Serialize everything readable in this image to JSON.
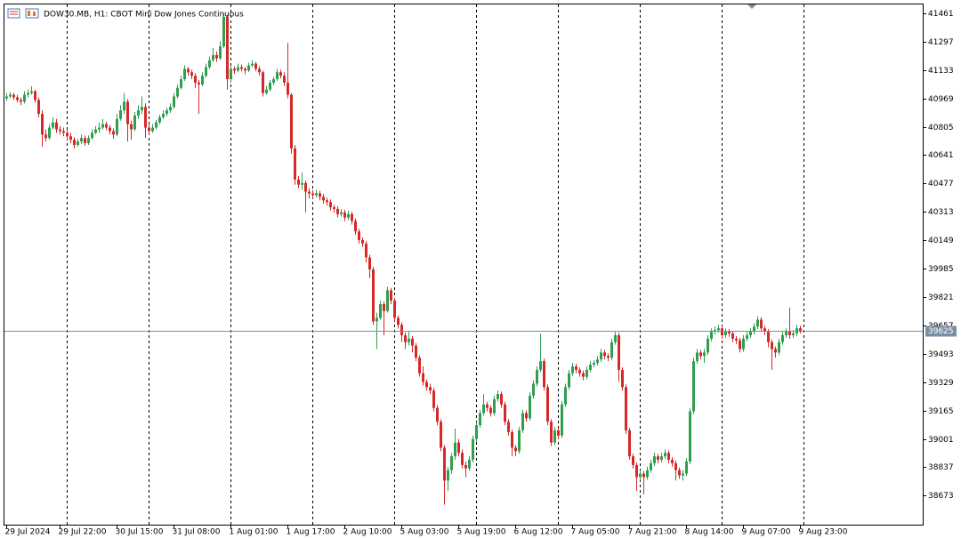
{
  "chart_data": {
    "type": "candlestick",
    "title": "DOW30.MB, H1:  CBOT Mini Dow Jones Continuous",
    "up_color": "#2e9e4f",
    "down_color": "#d62828",
    "ylim": [
      38505,
      41512
    ],
    "yticks": [
      41461,
      41297,
      41133,
      40969,
      40805,
      40641,
      40477,
      40313,
      40149,
      39985,
      39821,
      39657,
      39493,
      39329,
      39165,
      39001,
      38837,
      38673
    ],
    "xticks": [
      {
        "value": 0,
        "label": "29 Jul 2024"
      },
      {
        "value": 15,
        "label": "29 Jul 22:00"
      },
      {
        "value": 31,
        "label": "30 Jul 15:00"
      },
      {
        "value": 47,
        "label": "31 Jul 08:00"
      },
      {
        "value": 63,
        "label": "1 Aug 01:00"
      },
      {
        "value": 79,
        "label": "1 Aug 17:00"
      },
      {
        "value": 95,
        "label": "2 Aug 10:00"
      },
      {
        "value": 111,
        "label": "5 Aug 03:00"
      },
      {
        "value": 127,
        "label": "5 Aug 19:00"
      },
      {
        "value": 143,
        "label": "6 Aug 12:00"
      },
      {
        "value": 159,
        "label": "7 Aug 05:00"
      },
      {
        "value": 175,
        "label": "7 Aug 21:00"
      },
      {
        "value": 191,
        "label": "8 Aug 14:00"
      },
      {
        "value": 207,
        "label": "9 Aug 07:00"
      },
      {
        "value": 223,
        "label": "9 Aug 23:00"
      }
    ],
    "separators": [
      17,
      40,
      63,
      86,
      109,
      132,
      155,
      178,
      201,
      224
    ],
    "last_price": 39625,
    "candles": [
      [
        40970,
        41000,
        40955,
        40980
      ],
      [
        40980,
        41005,
        40970,
        40990
      ],
      [
        40990,
        41000,
        40960,
        40975
      ],
      [
        40975,
        40990,
        40945,
        40960
      ],
      [
        40960,
        40975,
        40930,
        40950
      ],
      [
        40950,
        41010,
        40940,
        40990
      ],
      [
        40990,
        41020,
        40975,
        41000
      ],
      [
        41000,
        41040,
        40990,
        41010
      ],
      [
        41010,
        41020,
        40945,
        40960
      ],
      [
        40960,
        40975,
        40860,
        40880
      ],
      [
        40880,
        40900,
        40690,
        40760
      ],
      [
        40760,
        40790,
        40720,
        40740
      ],
      [
        40740,
        40820,
        40730,
        40800
      ],
      [
        40800,
        40860,
        40790,
        40830
      ],
      [
        40830,
        40850,
        40770,
        40790
      ],
      [
        40790,
        40810,
        40760,
        40780
      ],
      [
        40780,
        40800,
        40750,
        40770
      ],
      [
        40770,
        40790,
        40730,
        40750
      ],
      [
        40750,
        40770,
        40710,
        40730
      ],
      [
        40730,
        40745,
        40680,
        40700
      ],
      [
        40700,
        40735,
        40690,
        40720
      ],
      [
        40720,
        40760,
        40705,
        40740
      ],
      [
        40740,
        40755,
        40695,
        40710
      ],
      [
        40710,
        40755,
        40700,
        40740
      ],
      [
        40740,
        40790,
        40730,
        40770
      ],
      [
        40770,
        40810,
        40760,
        40790
      ],
      [
        40790,
        40830,
        40770,
        40800
      ],
      [
        40800,
        40850,
        40790,
        40820
      ],
      [
        40820,
        40835,
        40785,
        40800
      ],
      [
        40800,
        40815,
        40760,
        40780
      ],
      [
        40780,
        40795,
        40735,
        40760
      ],
      [
        40760,
        40880,
        40750,
        40850
      ],
      [
        40850,
        40930,
        40840,
        40900
      ],
      [
        40900,
        41000,
        40880,
        40950
      ],
      [
        40950,
        40965,
        40720,
        40820
      ],
      [
        40820,
        40840,
        40730,
        40790
      ],
      [
        40790,
        40890,
        40780,
        40870
      ],
      [
        40870,
        40930,
        40850,
        40900
      ],
      [
        40900,
        40980,
        40880,
        40920
      ],
      [
        40920,
        40940,
        40740,
        40800
      ],
      [
        40800,
        40820,
        40760,
        40780
      ],
      [
        40780,
        40820,
        40770,
        40800
      ],
      [
        40800,
        40845,
        40790,
        40830
      ],
      [
        40830,
        40875,
        40820,
        40860
      ],
      [
        40860,
        40900,
        40850,
        40880
      ],
      [
        40880,
        40915,
        40865,
        40900
      ],
      [
        40900,
        40940,
        40885,
        40920
      ],
      [
        40920,
        41000,
        40910,
        40980
      ],
      [
        40980,
        41050,
        40970,
        41030
      ],
      [
        41030,
        41100,
        41020,
        41080
      ],
      [
        41080,
        41160,
        41070,
        41140
      ],
      [
        41140,
        41150,
        41100,
        41120
      ],
      [
        41120,
        41135,
        41080,
        41100
      ],
      [
        41100,
        41115,
        41030,
        41060
      ],
      [
        41060,
        41075,
        40880,
        41050
      ],
      [
        41050,
        41120,
        41040,
        41100
      ],
      [
        41100,
        41170,
        41090,
        41150
      ],
      [
        41150,
        41210,
        41140,
        41190
      ],
      [
        41190,
        41260,
        41180,
        41220
      ],
      [
        41220,
        41240,
        41180,
        41200
      ],
      [
        41200,
        41300,
        41190,
        41270
      ],
      [
        41270,
        41460,
        41260,
        41440
      ],
      [
        41440,
        41450,
        41020,
        41080
      ],
      [
        41080,
        41160,
        41060,
        41140
      ],
      [
        41140,
        41155,
        41110,
        41130
      ],
      [
        41130,
        41170,
        41120,
        41150
      ],
      [
        41150,
        41165,
        41125,
        41140
      ],
      [
        41140,
        41150,
        41110,
        41130
      ],
      [
        41130,
        41175,
        41120,
        41160
      ],
      [
        41160,
        41190,
        41150,
        41170
      ],
      [
        41170,
        41180,
        41125,
        41140
      ],
      [
        41140,
        41155,
        41100,
        41120
      ],
      [
        41120,
        41130,
        40980,
        41000
      ],
      [
        41000,
        41040,
        40990,
        41020
      ],
      [
        41020,
        41075,
        41010,
        41060
      ],
      [
        41060,
        41095,
        41045,
        41080
      ],
      [
        41080,
        41140,
        41070,
        41120
      ],
      [
        41120,
        41135,
        41085,
        41100
      ],
      [
        41100,
        41120,
        41040,
        41060
      ],
      [
        41060,
        41290,
        40970,
        40990
      ],
      [
        40990,
        41000,
        40650,
        40680
      ],
      [
        40680,
        40700,
        40470,
        40500
      ],
      [
        40500,
        40520,
        40450,
        40470
      ],
      [
        40470,
        40540,
        40440,
        40480
      ],
      [
        40480,
        40495,
        40310,
        40430
      ],
      [
        40430,
        40450,
        40390,
        40420
      ],
      [
        40420,
        40440,
        40390,
        40410
      ],
      [
        40410,
        40440,
        40395,
        40420
      ],
      [
        40420,
        40435,
        40380,
        40400
      ],
      [
        40400,
        40415,
        40360,
        40380
      ],
      [
        40380,
        40395,
        40350,
        40370
      ],
      [
        40370,
        40385,
        40320,
        40340
      ],
      [
        40340,
        40355,
        40310,
        40330
      ],
      [
        40330,
        40345,
        40280,
        40300
      ],
      [
        40300,
        40330,
        40285,
        40310
      ],
      [
        40310,
        40325,
        40260,
        40280
      ],
      [
        40280,
        40320,
        40265,
        40300
      ],
      [
        40300,
        40315,
        40240,
        40260
      ],
      [
        40260,
        40275,
        40180,
        40200
      ],
      [
        40200,
        40215,
        40130,
        40150
      ],
      [
        40150,
        40165,
        40110,
        40130
      ],
      [
        40130,
        40145,
        40020,
        40050
      ],
      [
        40050,
        40065,
        39930,
        39980
      ],
      [
        39980,
        39995,
        39660,
        39680
      ],
      [
        39680,
        39730,
        39520,
        39700
      ],
      [
        39700,
        39800,
        39690,
        39780
      ],
      [
        39780,
        39795,
        39600,
        39740
      ],
      [
        39740,
        39880,
        39730,
        39860
      ],
      [
        39860,
        39875,
        39780,
        39800
      ],
      [
        39800,
        39815,
        39680,
        39700
      ],
      [
        39700,
        39715,
        39640,
        39660
      ],
      [
        39660,
        39675,
        39560,
        39600
      ],
      [
        39600,
        39615,
        39520,
        39560
      ],
      [
        39560,
        39620,
        39540,
        39580
      ],
      [
        39580,
        39595,
        39500,
        39540
      ],
      [
        39540,
        39555,
        39450,
        39470
      ],
      [
        39470,
        39485,
        39360,
        39380
      ],
      [
        39380,
        39420,
        39310,
        39330
      ],
      [
        39330,
        39345,
        39280,
        39300
      ],
      [
        39300,
        39320,
        39260,
        39280
      ],
      [
        39280,
        39295,
        39160,
        39180
      ],
      [
        39180,
        39195,
        39080,
        39100
      ],
      [
        39100,
        39115,
        38930,
        38950
      ],
      [
        38950,
        38965,
        38620,
        38760
      ],
      [
        38760,
        38840,
        38700,
        38820
      ],
      [
        38820,
        38920,
        38800,
        38900
      ],
      [
        38900,
        39060,
        38880,
        38980
      ],
      [
        38980,
        39000,
        38900,
        38920
      ],
      [
        38920,
        38940,
        38830,
        38850
      ],
      [
        38850,
        38870,
        38780,
        38830
      ],
      [
        38830,
        38900,
        38815,
        38880
      ],
      [
        38880,
        39020,
        38865,
        39000
      ],
      [
        39000,
        39100,
        38985,
        39080
      ],
      [
        39080,
        39170,
        39065,
        39150
      ],
      [
        39150,
        39260,
        39135,
        39200
      ],
      [
        39200,
        39215,
        39160,
        39180
      ],
      [
        39180,
        39195,
        39130,
        39150
      ],
      [
        39150,
        39250,
        39135,
        39230
      ],
      [
        39230,
        39280,
        39215,
        39260
      ],
      [
        39260,
        39275,
        39180,
        39200
      ],
      [
        39200,
        39215,
        39080,
        39100
      ],
      [
        39100,
        39115,
        39020,
        39040
      ],
      [
        39040,
        39055,
        38900,
        38950
      ],
      [
        38950,
        38965,
        38900,
        38930
      ],
      [
        38930,
        39070,
        38915,
        39050
      ],
      [
        39050,
        39170,
        39035,
        39150
      ],
      [
        39150,
        39165,
        39100,
        39120
      ],
      [
        39120,
        39270,
        39105,
        39250
      ],
      [
        39250,
        39340,
        39235,
        39320
      ],
      [
        39320,
        39420,
        39305,
        39400
      ],
      [
        39400,
        39610,
        39385,
        39450
      ],
      [
        39450,
        39465,
        39280,
        39300
      ],
      [
        39300,
        39315,
        39080,
        39100
      ],
      [
        39100,
        39115,
        38960,
        38980
      ],
      [
        38980,
        39070,
        38965,
        39050
      ],
      [
        39050,
        39065,
        39000,
        39020
      ],
      [
        39020,
        39220,
        39005,
        39200
      ],
      [
        39200,
        39320,
        39185,
        39300
      ],
      [
        39300,
        39400,
        39285,
        39380
      ],
      [
        39380,
        39440,
        39365,
        39420
      ],
      [
        39420,
        39435,
        39380,
        39400
      ],
      [
        39400,
        39415,
        39360,
        39380
      ],
      [
        39380,
        39395,
        39340,
        39360
      ],
      [
        39360,
        39420,
        39345,
        39400
      ],
      [
        39400,
        39450,
        39385,
        39430
      ],
      [
        39430,
        39455,
        39415,
        39440
      ],
      [
        39440,
        39480,
        39425,
        39460
      ],
      [
        39460,
        39520,
        39445,
        39500
      ],
      [
        39500,
        39515,
        39460,
        39480
      ],
      [
        39480,
        39495,
        39450,
        39470
      ],
      [
        39470,
        39580,
        39455,
        39560
      ],
      [
        39560,
        39620,
        39545,
        39600
      ],
      [
        39600,
        39615,
        39330,
        39400
      ],
      [
        39400,
        39415,
        39280,
        39300
      ],
      [
        39300,
        39315,
        39030,
        39050
      ],
      [
        39050,
        39065,
        38880,
        38900
      ],
      [
        38900,
        38915,
        38830,
        38850
      ],
      [
        38850,
        38865,
        38700,
        38780
      ],
      [
        38780,
        38820,
        38760,
        38800
      ],
      [
        38800,
        38815,
        38680,
        38780
      ],
      [
        38780,
        38840,
        38765,
        38820
      ],
      [
        38820,
        38880,
        38805,
        38860
      ],
      [
        38860,
        38920,
        38845,
        38900
      ],
      [
        38900,
        38915,
        38860,
        38880
      ],
      [
        38880,
        38920,
        38865,
        38900
      ],
      [
        38900,
        38940,
        38885,
        38920
      ],
      [
        38920,
        38935,
        38860,
        38880
      ],
      [
        38880,
        38895,
        38840,
        38860
      ],
      [
        38860,
        38875,
        38760,
        38820
      ],
      [
        38820,
        38835,
        38770,
        38790
      ],
      [
        38790,
        38820,
        38760,
        38800
      ],
      [
        38800,
        38890,
        38785,
        38870
      ],
      [
        38870,
        39180,
        38855,
        39160
      ],
      [
        39160,
        39470,
        39145,
        39450
      ],
      [
        39450,
        39520,
        39435,
        39500
      ],
      [
        39500,
        39515,
        39460,
        39480
      ],
      [
        39480,
        39520,
        39440,
        39500
      ],
      [
        39500,
        39600,
        39485,
        39580
      ],
      [
        39580,
        39640,
        39565,
        39620
      ],
      [
        39620,
        39650,
        39605,
        39630
      ],
      [
        39630,
        39660,
        39615,
        39640
      ],
      [
        39640,
        39655,
        39580,
        39600
      ],
      [
        39600,
        39640,
        39585,
        39620
      ],
      [
        39620,
        39635,
        39590,
        39610
      ],
      [
        39610,
        39625,
        39560,
        39580
      ],
      [
        39580,
        39595,
        39550,
        39570
      ],
      [
        39570,
        39585,
        39500,
        39520
      ],
      [
        39520,
        39600,
        39505,
        39580
      ],
      [
        39580,
        39620,
        39565,
        39600
      ],
      [
        39600,
        39640,
        39585,
        39620
      ],
      [
        39620,
        39670,
        39605,
        39650
      ],
      [
        39650,
        39710,
        39635,
        39690
      ],
      [
        39690,
        39705,
        39620,
        39640
      ],
      [
        39640,
        39655,
        39600,
        39620
      ],
      [
        39620,
        39635,
        39530,
        39560
      ],
      [
        39560,
        39575,
        39400,
        39520
      ],
      [
        39520,
        39535,
        39470,
        39500
      ],
      [
        39500,
        39580,
        39485,
        39560
      ],
      [
        39560,
        39620,
        39545,
        39600
      ],
      [
        39600,
        39640,
        39585,
        39620
      ],
      [
        39620,
        39760,
        39580,
        39600
      ],
      [
        39600,
        39630,
        39585,
        39610
      ],
      [
        39610,
        39660,
        39595,
        39640
      ],
      [
        39640,
        39655,
        39610,
        39625
      ]
    ]
  }
}
